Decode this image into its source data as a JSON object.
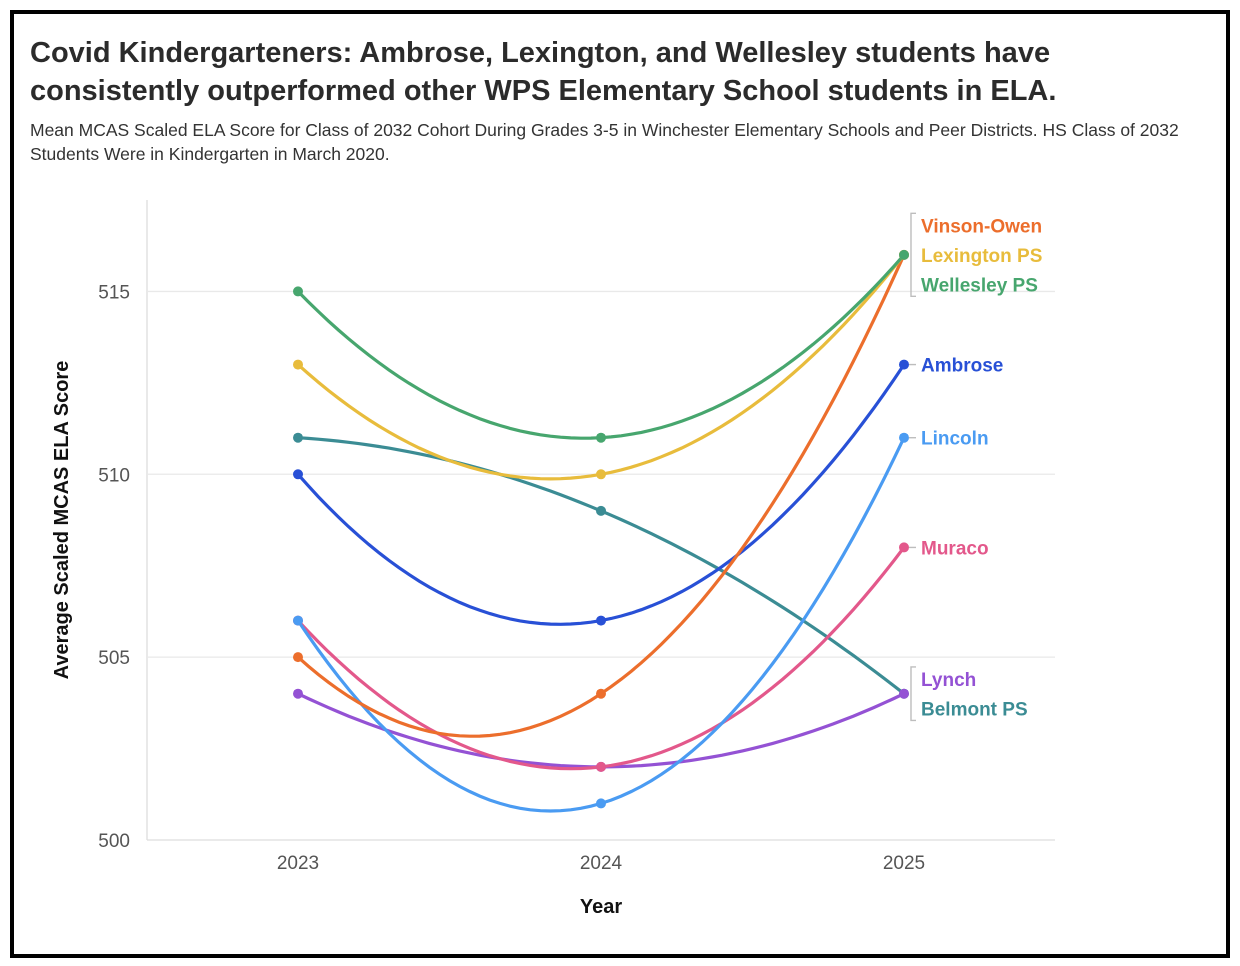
{
  "chart_data": {
    "type": "line",
    "title": "Covid Kindergarteners: Ambrose, Lexington, and Wellesley students have consistently outperformed other WPS Elementary School students in ELA.",
    "subtitle": "Mean MCAS Scaled ELA Score for Class of 2032 Cohort During Grades 3-5 in Winchester Elementary Schools and Peer Districts. HS Class of 2032 Students Were in Kindergarten in March 2020.",
    "xlabel": "Year",
    "ylabel": "Average Scaled MCAS ELA Score",
    "x": [
      2023,
      2024,
      2025
    ],
    "x_tick_labels": [
      "2023",
      "2024",
      "2025"
    ],
    "ylim": [
      500,
      517.5
    ],
    "y_ticks": [
      500,
      505,
      510,
      515
    ],
    "y_tick_labels": [
      "500",
      "505",
      "510",
      "515"
    ],
    "grid": true,
    "legend": "direct labels at right end of lines",
    "series": [
      {
        "name": "Belmont PS",
        "label": "Belmont PS",
        "color": "#3b8c94",
        "values": [
          511,
          509,
          504
        ]
      },
      {
        "name": "Lynch",
        "label": "Lynch",
        "color": "#9452d4",
        "values": [
          504,
          502,
          504
        ]
      },
      {
        "name": "Muraco",
        "label": "Muraco",
        "color": "#e3588b",
        "values": [
          506,
          502,
          508
        ]
      },
      {
        "name": "Lincoln",
        "label": "Lincoln",
        "color": "#4a9bf2",
        "values": [
          506,
          501,
          511
        ]
      },
      {
        "name": "Ambrose",
        "label": "Ambrose",
        "color": "#2850d6",
        "values": [
          510,
          506,
          513
        ]
      },
      {
        "name": "Vinson-Owen",
        "label": "Vinson-Owen",
        "color": "#ec6e2c",
        "values": [
          505,
          504,
          516
        ]
      },
      {
        "name": "Lexington PS",
        "label": "Lexington PS",
        "color": "#e8bc3c",
        "values": [
          513,
          510,
          516
        ]
      },
      {
        "name": "Wellesley PS",
        "label": "Wellesley PS",
        "color": "#47a66e",
        "values": [
          515,
          511,
          516
        ]
      }
    ]
  }
}
